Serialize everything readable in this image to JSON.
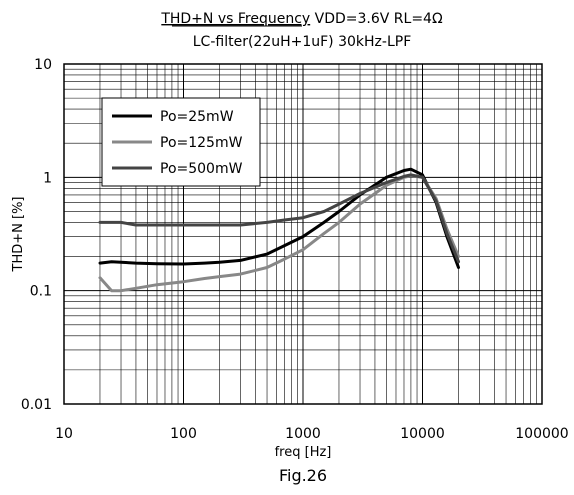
{
  "chart_data": {
    "type": "line",
    "title_underlined": "THD+N vs Frequency",
    "title_rest": " VDD=3.6V RL=4Ω",
    "subtitle": "LC-filter(22uH+1uF) 30kHz-LPF",
    "xlabel": "freq [Hz]",
    "ylabel": "THD+N [%]",
    "caption": "Fig.26",
    "x_scale": "log",
    "y_scale": "log",
    "xlim": [
      10,
      100000
    ],
    "ylim": [
      0.01,
      10
    ],
    "x_ticks": [
      {
        "value": 10,
        "label": "10"
      },
      {
        "value": 100,
        "label": "100"
      },
      {
        "value": 1000,
        "label": "1000"
      },
      {
        "value": 10000,
        "label": "10000"
      },
      {
        "value": 100000,
        "label": "100000"
      }
    ],
    "y_ticks": [
      {
        "value": 0.01,
        "label": "0.01"
      },
      {
        "value": 0.1,
        "label": "0.1"
      },
      {
        "value": 1,
        "label": "1"
      },
      {
        "value": 10,
        "label": "10"
      }
    ],
    "grid": true,
    "legend_position": "top-left",
    "series": [
      {
        "name": "Po=25mW",
        "color": "#000000",
        "x": [
          20,
          25,
          30,
          40,
          60,
          100,
          150,
          200,
          300,
          500,
          700,
          1000,
          1500,
          2000,
          3000,
          5000,
          7000,
          8000,
          10000,
          13000,
          16000,
          20000
        ],
        "y": [
          0.175,
          0.18,
          0.178,
          0.175,
          0.173,
          0.172,
          0.175,
          0.178,
          0.185,
          0.21,
          0.25,
          0.3,
          0.4,
          0.5,
          0.7,
          1.0,
          1.15,
          1.18,
          1.05,
          0.6,
          0.3,
          0.16
        ]
      },
      {
        "name": "Po=125mW",
        "color": "#888888",
        "x": [
          20,
          25,
          30,
          40,
          60,
          100,
          150,
          200,
          300,
          500,
          700,
          1000,
          1500,
          2000,
          3000,
          5000,
          7000,
          8000,
          10000,
          13000,
          16000,
          20000
        ],
        "y": [
          0.13,
          0.1,
          0.1,
          0.105,
          0.113,
          0.12,
          0.128,
          0.133,
          0.14,
          0.16,
          0.19,
          0.23,
          0.32,
          0.4,
          0.58,
          0.85,
          1.0,
          1.03,
          1.0,
          0.65,
          0.35,
          0.2
        ]
      },
      {
        "name": "Po=500mW",
        "color": "#444444",
        "x": [
          20,
          25,
          30,
          40,
          60,
          100,
          150,
          200,
          300,
          500,
          700,
          1000,
          1500,
          2000,
          3000,
          5000,
          7000,
          8000,
          10000,
          13000,
          16000,
          20000
        ],
        "y": [
          0.4,
          0.4,
          0.4,
          0.38,
          0.38,
          0.38,
          0.38,
          0.38,
          0.38,
          0.4,
          0.42,
          0.44,
          0.5,
          0.58,
          0.72,
          0.9,
          1.02,
          1.05,
          1.0,
          0.62,
          0.32,
          0.18
        ]
      }
    ]
  }
}
